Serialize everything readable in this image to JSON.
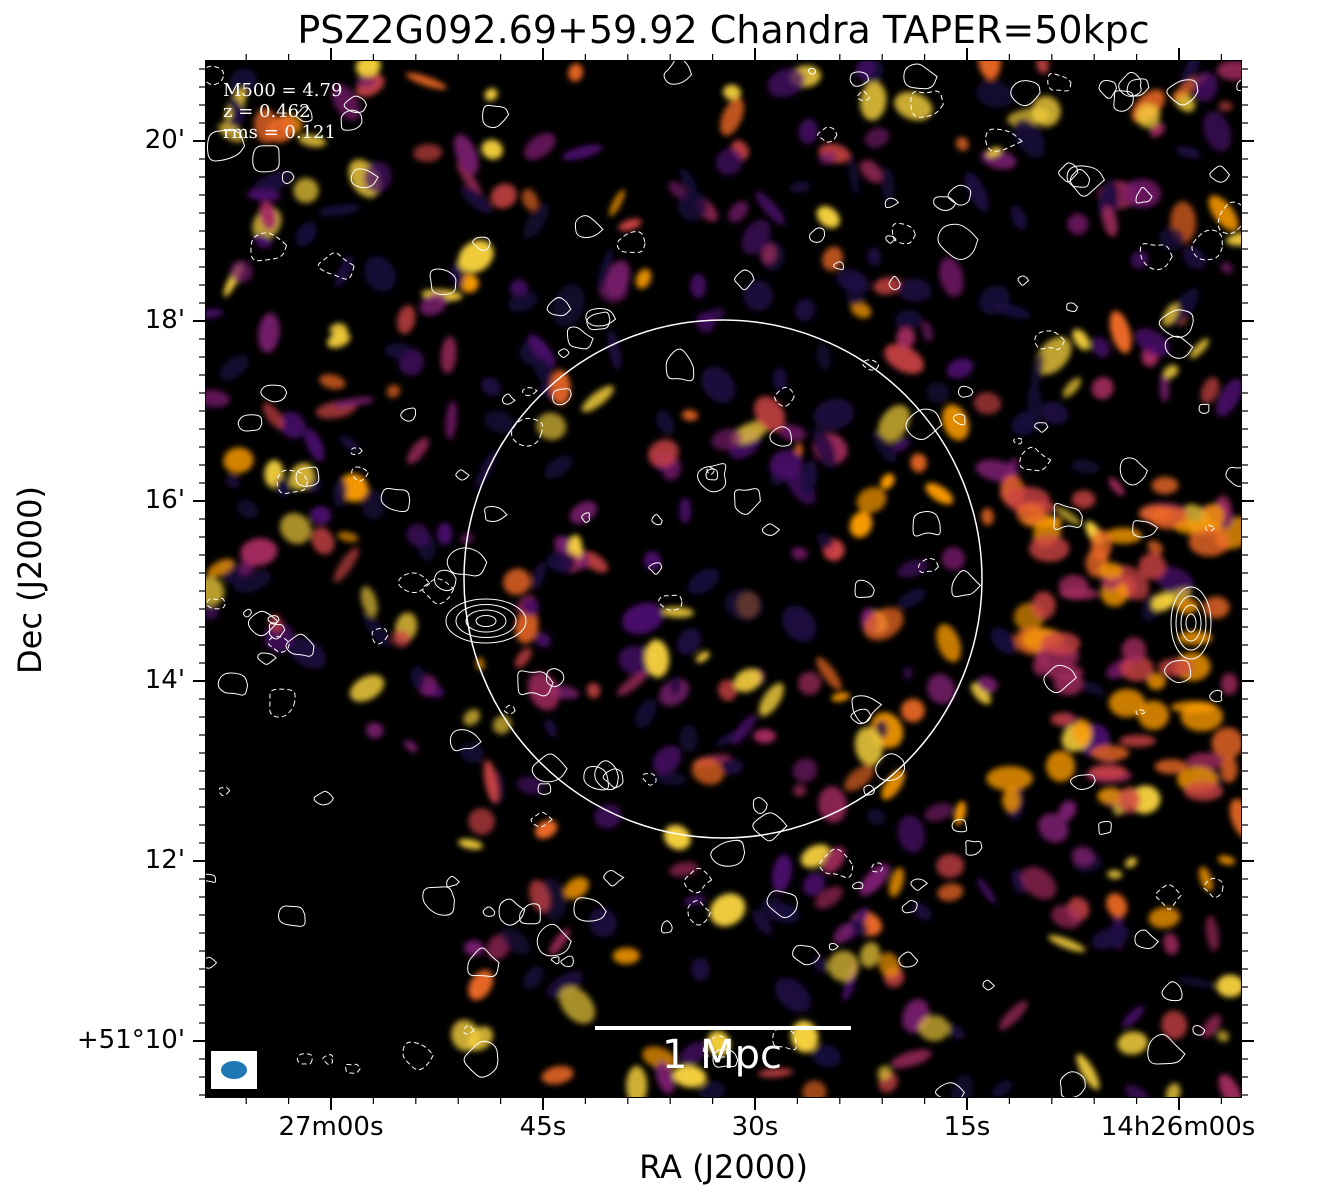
{
  "figure": {
    "title": "PSZ2G092.69+59.92 Chandra TAPER=50kpc",
    "info_lines": [
      "M500 = 4.79",
      "z = 0.462",
      "rms = 0.121"
    ],
    "scalebar_label": "1 Mpc",
    "xlabel": "RA (J2000)",
    "ylabel": "Dec (J2000)",
    "y_ticks": [
      "20'",
      "18'",
      "16'",
      "14'",
      "12'",
      "+51°10'"
    ],
    "x_ticks": [
      "27m00s",
      "45s",
      "30s",
      "15s",
      "14h26m00s"
    ],
    "colors": {
      "background": "#000000",
      "contours": "#ffffff",
      "beam": "#1f77b4",
      "colormap": [
        "#1b0c41",
        "#4a0c6b",
        "#781c6d",
        "#a52c60",
        "#cf4446",
        "#ed6925",
        "#fb9b06",
        "#f7d13d"
      ]
    }
  }
}
